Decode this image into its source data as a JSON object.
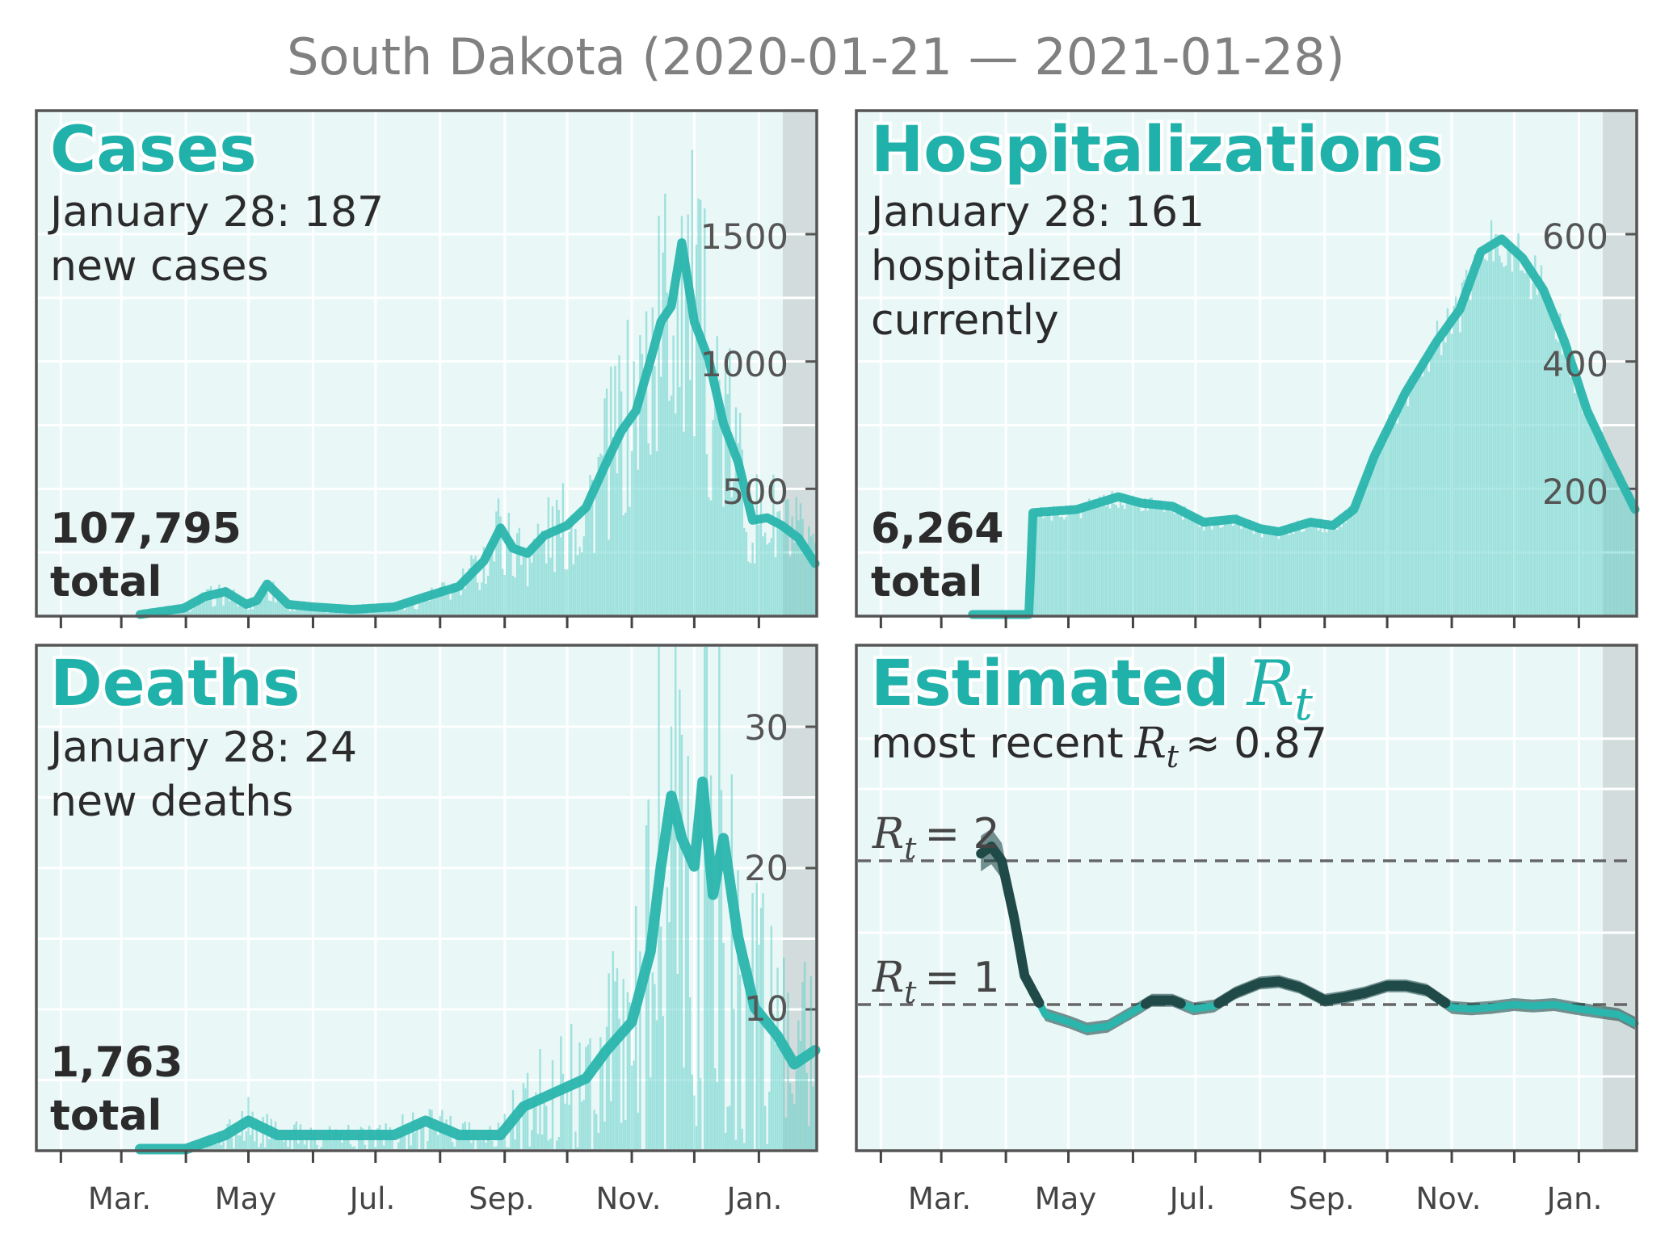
{
  "title": "South Dakota (2020-01-21 — 2021-01-28)",
  "colors": {
    "accent": "#20b2aa",
    "bars": "#5fcfc8",
    "panel_bg": "#eaf7f7",
    "shade": "#d2dcdc",
    "text": "#2b2b2b",
    "frame": "#555555",
    "dark_line": "#1f4a48"
  },
  "x_tick_labels": [
    "Mar.",
    "May",
    "Jul.",
    "Sep.",
    "Nov.",
    "Jan."
  ],
  "panels": {
    "cases": {
      "title": "Cases",
      "date_line": "January 28: 187",
      "desc_line1": "new cases",
      "total_value": "107,795",
      "total_word": "total",
      "ytick_labels": [
        "500",
        "1000",
        "1500"
      ]
    },
    "hospitalizations": {
      "title": "Hospitalizations",
      "date_line": "January 28: 161",
      "desc_line1": "hospitalized",
      "desc_line2": "currently",
      "total_value": "6,264",
      "total_word": "total",
      "ytick_labels": [
        "200",
        "400",
        "600"
      ]
    },
    "deaths": {
      "title": "Deaths",
      "date_line": "January 28: 24",
      "desc_line1": "new deaths",
      "total_value": "1,763",
      "total_word": "total",
      "ytick_labels": [
        "10",
        "20",
        "30"
      ]
    },
    "rt": {
      "title": "Estimated",
      "title_symbol": "R",
      "title_sub": "t",
      "recent_prefix": "most recent",
      "recent_symbol": "R",
      "recent_sub": "t",
      "recent_value": "≈ 0.87",
      "ref2_symbol": "R",
      "ref2_sub": "t",
      "ref2_value": "= 2",
      "ref1_symbol": "R",
      "ref1_sub": "t",
      "ref1_value": "= 1"
    }
  },
  "chart_data": [
    {
      "type": "bar",
      "panel": "Cases",
      "x_label_dates": [
        "2020-03-01",
        "2020-05-01",
        "2020-07-01",
        "2020-09-01",
        "2020-11-01",
        "2021-01-01"
      ],
      "xlim": [
        "2020-01-21",
        "2021-01-28"
      ],
      "ylim": [
        0,
        1500
      ],
      "yticks": [
        500,
        1000,
        1500
      ],
      "moving_average": {
        "dates": [
          "2020-03-10",
          "2020-03-31",
          "2020-04-10",
          "2020-04-20",
          "2020-04-30",
          "2020-05-05",
          "2020-05-10",
          "2020-05-20",
          "2020-06-01",
          "2020-06-20",
          "2020-07-10",
          "2020-07-25",
          "2020-08-10",
          "2020-08-22",
          "2020-08-30",
          "2020-09-05",
          "2020-09-12",
          "2020-09-20",
          "2020-10-01",
          "2020-10-10",
          "2020-10-20",
          "2020-10-27",
          "2020-11-03",
          "2020-11-10",
          "2020-11-15",
          "2020-11-20",
          "2020-11-25",
          "2020-12-01",
          "2020-12-08",
          "2020-12-15",
          "2020-12-22",
          "2020-12-29",
          "2021-01-05",
          "2021-01-12",
          "2021-01-20",
          "2021-01-28"
        ],
        "values": [
          0,
          25,
          70,
          90,
          40,
          55,
          120,
          40,
          30,
          20,
          30,
          70,
          110,
          210,
          340,
          260,
          240,
          310,
          350,
          420,
          600,
          720,
          800,
          1000,
          1150,
          1210,
          1460,
          1150,
          1000,
          750,
          600,
          370,
          380,
          350,
          300,
          200
        ]
      },
      "annotation_date": "2021-01-28",
      "annotation_value": 187,
      "total": 107795
    },
    {
      "type": "bar",
      "panel": "Hospitalizations",
      "xlim": [
        "2020-01-21",
        "2021-01-28"
      ],
      "ylim": [
        0,
        600
      ],
      "yticks": [
        200,
        400,
        600
      ],
      "moving_average": {
        "dates": [
          "2020-03-16",
          "2020-04-12",
          "2020-04-14",
          "2020-05-05",
          "2020-05-25",
          "2020-06-05",
          "2020-06-20",
          "2020-07-05",
          "2020-07-20",
          "2020-08-01",
          "2020-08-10",
          "2020-08-25",
          "2020-09-05",
          "2020-09-15",
          "2020-09-25",
          "2020-10-10",
          "2020-10-25",
          "2020-11-05",
          "2020-11-15",
          "2020-11-25",
          "2020-12-05",
          "2020-12-15",
          "2020-12-25",
          "2021-01-05",
          "2021-01-15",
          "2021-01-28"
        ],
        "values": [
          0,
          0,
          160,
          165,
          185,
          175,
          170,
          145,
          150,
          135,
          130,
          145,
          140,
          165,
          250,
          350,
          430,
          480,
          570,
          590,
          560,
          510,
          430,
          320,
          250,
          165
        ]
      },
      "annotation_date": "2021-01-28",
      "annotation_value": 161,
      "total": 6264
    },
    {
      "type": "bar",
      "panel": "Deaths",
      "xlim": [
        "2020-01-21",
        "2021-01-28"
      ],
      "ylim": [
        0,
        30
      ],
      "yticks": [
        10,
        20,
        30
      ],
      "moving_average": {
        "dates": [
          "2020-03-10",
          "2020-04-01",
          "2020-04-20",
          "2020-05-01",
          "2020-05-15",
          "2020-06-01",
          "2020-06-20",
          "2020-07-10",
          "2020-07-25",
          "2020-08-10",
          "2020-08-30",
          "2020-09-10",
          "2020-09-25",
          "2020-10-10",
          "2020-10-20",
          "2020-11-01",
          "2020-11-10",
          "2020-11-15",
          "2020-11-20",
          "2020-11-25",
          "2020-12-01",
          "2020-12-05",
          "2020-12-10",
          "2020-12-15",
          "2020-12-22",
          "2020-12-30",
          "2021-01-10",
          "2021-01-18",
          "2021-01-28"
        ],
        "values": [
          0,
          0,
          1,
          2,
          1,
          1,
          1,
          1,
          2,
          1,
          1,
          3,
          4,
          5,
          7,
          9,
          14,
          20,
          25,
          22,
          20,
          26,
          18,
          22,
          15,
          10,
          8,
          6,
          7
        ]
      },
      "annotation_date": "2021-01-28",
      "annotation_value": 24,
      "total": 1763
    },
    {
      "type": "line",
      "panel": "Estimated Rt",
      "xlim": [
        "2020-01-21",
        "2021-01-28"
      ],
      "reference_lines": [
        1,
        2
      ],
      "series": {
        "dates": [
          "2020-03-20",
          "2020-03-25",
          "2020-03-30",
          "2020-04-05",
          "2020-04-10",
          "2020-04-20",
          "2020-05-01",
          "2020-05-10",
          "2020-05-20",
          "2020-06-01",
          "2020-06-10",
          "2020-06-20",
          "2020-06-30",
          "2020-07-10",
          "2020-07-20",
          "2020-08-01",
          "2020-08-10",
          "2020-08-20",
          "2020-09-01",
          "2020-09-10",
          "2020-09-20",
          "2020-10-01",
          "2020-10-10",
          "2020-10-20",
          "2020-11-01",
          "2020-11-10",
          "2020-11-20",
          "2020-12-01",
          "2020-12-10",
          "2020-12-20",
          "2021-01-01",
          "2021-01-10",
          "2021-01-20",
          "2021-01-28"
        ],
        "values": [
          2.05,
          2.1,
          2.0,
          1.6,
          1.2,
          0.93,
          0.88,
          0.83,
          0.85,
          0.95,
          1.03,
          1.03,
          0.97,
          0.99,
          1.08,
          1.15,
          1.16,
          1.12,
          1.03,
          1.05,
          1.08,
          1.13,
          1.13,
          1.1,
          0.98,
          0.97,
          0.98,
          1.0,
          0.99,
          1.0,
          0.97,
          0.95,
          0.93,
          0.87
        ]
      },
      "most_recent": 0.87
    }
  ]
}
